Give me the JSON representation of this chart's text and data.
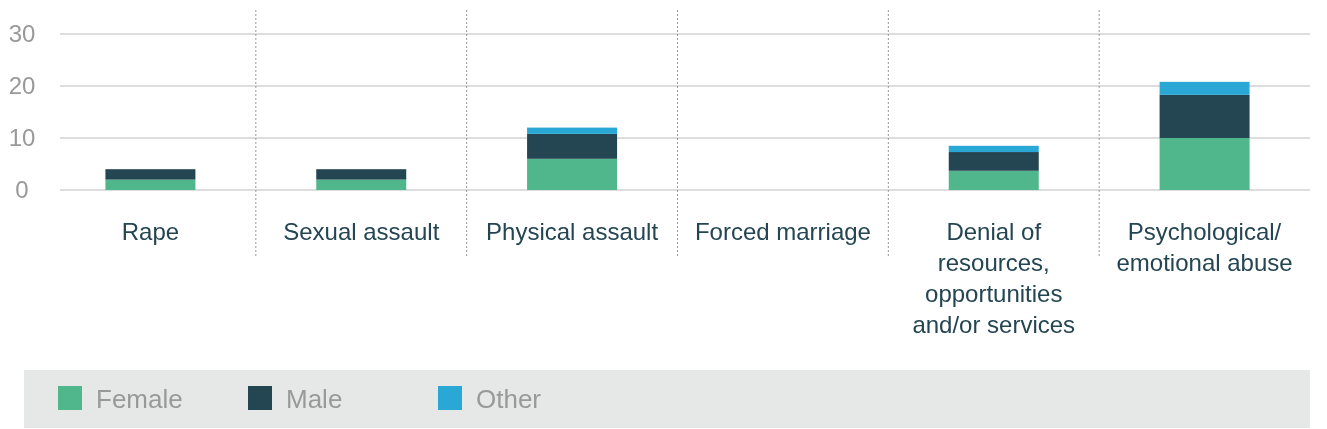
{
  "chart_data": {
    "type": "bar",
    "stacked": true,
    "categories": [
      "Rape",
      "Sexual assault",
      "Physical assault",
      "Forced marriage",
      "Denial of resources, opportunities and/or services",
      "Psychological/ emotional abuse"
    ],
    "series": [
      {
        "name": "Female",
        "color": "#50b68c",
        "values": [
          2,
          2,
          6,
          0,
          3.7,
          10
        ]
      },
      {
        "name": "Male",
        "color": "#244552",
        "values": [
          2,
          2,
          4.8,
          0,
          3.6,
          8.3
        ]
      },
      {
        "name": "Other",
        "color": "#29a8d5",
        "values": [
          0,
          0,
          1.2,
          0,
          1.2,
          2.5
        ]
      }
    ],
    "ylim": [
      0,
      30
    ],
    "yticks": [
      0,
      10,
      20,
      30
    ],
    "grid": "y",
    "legend": "bottom"
  }
}
